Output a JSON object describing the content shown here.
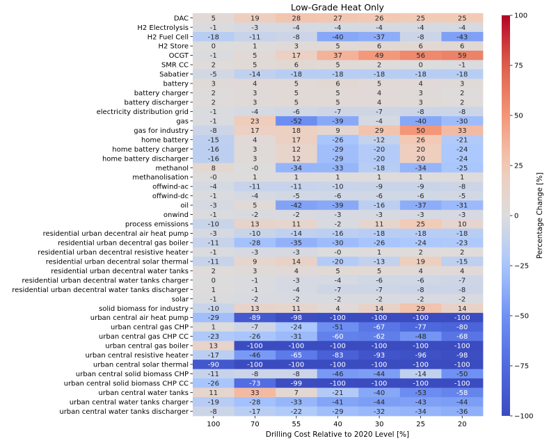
{
  "chart_data": {
    "type": "heatmap",
    "title": "Low-Grade Heat Only",
    "xlabel": "Drilling Cost Relative to 2020 Level [%]",
    "ylabel": "",
    "colorbar_label": "Percentage Change [%]",
    "colormap": "coolwarm",
    "vmin": -100,
    "vmax": 100,
    "colorbar_ticks": [
      100,
      75,
      50,
      25,
      0,
      -25,
      -50,
      -75,
      -100
    ],
    "colorbar_tick_labels": [
      "100",
      "75",
      "50",
      "25",
      "0",
      "−25",
      "−50",
      "−75",
      "−100"
    ],
    "columns": [
      "100",
      "70",
      "55",
      "40",
      "30",
      "25",
      "20"
    ],
    "rows": [
      {
        "label": "DAC",
        "values": [
          5,
          19,
          28,
          27,
          26,
          25,
          25
        ]
      },
      {
        "label": "H2 Electrolysis",
        "values": [
          -1,
          -3,
          -4,
          -4,
          -4,
          -4,
          -4
        ]
      },
      {
        "label": "H2 Fuel Cell",
        "values": [
          -18,
          -11,
          -8,
          -40,
          -37,
          -8,
          -43
        ]
      },
      {
        "label": "H2 Store",
        "values": [
          0,
          1,
          3,
          5,
          6,
          6,
          6
        ]
      },
      {
        "label": "OCGT",
        "values": [
          -1,
          5,
          17,
          37,
          49,
          56,
          59
        ]
      },
      {
        "label": "SMR CC",
        "values": [
          2,
          5,
          6,
          5,
          2,
          0,
          -1
        ]
      },
      {
        "label": "Sabatier",
        "values": [
          -5,
          -14,
          -18,
          -18,
          -18,
          -18,
          -18
        ]
      },
      {
        "label": "battery",
        "values": [
          3,
          4,
          5,
          6,
          5,
          4,
          3
        ]
      },
      {
        "label": "battery charger",
        "values": [
          2,
          3,
          5,
          5,
          4,
          3,
          2
        ]
      },
      {
        "label": "battery discharger",
        "values": [
          2,
          3,
          5,
          5,
          4,
          3,
          2
        ]
      },
      {
        "label": "electricity distribution grid",
        "values": [
          -1,
          -4,
          -6,
          -7,
          -7,
          -8,
          -8
        ]
      },
      {
        "label": "gas",
        "values": [
          -1,
          23,
          -52,
          -39,
          -4,
          -40,
          -30
        ]
      },
      {
        "label": "gas for industry",
        "values": [
          -8,
          17,
          18,
          9,
          29,
          50,
          33
        ]
      },
      {
        "label": "home battery",
        "values": [
          -15,
          4,
          17,
          -26,
          -12,
          26,
          -21
        ]
      },
      {
        "label": "home battery charger",
        "values": [
          -16,
          3,
          12,
          -29,
          -20,
          20,
          -24
        ]
      },
      {
        "label": "home battery discharger",
        "values": [
          -16,
          3,
          12,
          -29,
          -20,
          20,
          -24
        ]
      },
      {
        "label": "methanol",
        "values": [
          8,
          "-0",
          -34,
          -33,
          -18,
          -34,
          -25
        ]
      },
      {
        "label": "methanolisation",
        "values": [
          "-0",
          1,
          1,
          1,
          1,
          1,
          1
        ]
      },
      {
        "label": "offwind-ac",
        "values": [
          -4,
          -11,
          -11,
          -10,
          -9,
          -9,
          -8
        ]
      },
      {
        "label": "offwind-dc",
        "values": [
          -1,
          -4,
          -5,
          -6,
          -6,
          -6,
          -5
        ]
      },
      {
        "label": "oil",
        "values": [
          -3,
          5,
          -42,
          -39,
          -16,
          -37,
          -31
        ]
      },
      {
        "label": "onwind",
        "values": [
          -1,
          -2,
          -2,
          -3,
          -3,
          -3,
          -3
        ]
      },
      {
        "label": "process emissions",
        "values": [
          -10,
          13,
          11,
          -2,
          11,
          25,
          10
        ]
      },
      {
        "label": "residential urban decentral air heat pump",
        "values": [
          -3,
          -10,
          -14,
          -16,
          -18,
          -18,
          -18
        ]
      },
      {
        "label": "residential urban decentral gas boiler",
        "values": [
          -11,
          -28,
          -35,
          -30,
          -26,
          -24,
          -23
        ]
      },
      {
        "label": "residential urban decentral resistive heater",
        "values": [
          -1,
          -3,
          -3,
          "-0",
          1,
          2,
          2
        ]
      },
      {
        "label": "residential urban decentral solar thermal",
        "values": [
          -11,
          9,
          14,
          -20,
          -13,
          19,
          -15
        ]
      },
      {
        "label": "residential urban decentral water tanks",
        "values": [
          2,
          3,
          4,
          5,
          5,
          4,
          4
        ]
      },
      {
        "label": "residential urban decentral water tanks charger",
        "values": [
          0,
          -1,
          -3,
          -4,
          -6,
          -6,
          -7
        ]
      },
      {
        "label": "residential urban decentral water tanks discharger",
        "values": [
          1,
          -1,
          -4,
          -7,
          -7,
          -8,
          -8
        ]
      },
      {
        "label": "solar",
        "values": [
          -1,
          -2,
          -2,
          -2,
          -2,
          -2,
          -2
        ]
      },
      {
        "label": "solid biomass for industry",
        "values": [
          -10,
          13,
          11,
          4,
          14,
          29,
          14
        ]
      },
      {
        "label": "urban central air heat pump",
        "values": [
          -29,
          -89,
          -98,
          -100,
          -100,
          -100,
          -100
        ]
      },
      {
        "label": "urban central gas CHP",
        "values": [
          1,
          -7,
          -24,
          -51,
          -67,
          -77,
          -80
        ]
      },
      {
        "label": "urban central gas CHP CC",
        "values": [
          -23,
          -26,
          -31,
          -60,
          -62,
          -48,
          -68
        ]
      },
      {
        "label": "urban central gas boiler",
        "values": [
          13,
          -100,
          -100,
          -100,
          -100,
          -100,
          -100
        ]
      },
      {
        "label": "urban central resistive heater",
        "values": [
          -17,
          -46,
          -65,
          -83,
          -93,
          -96,
          -98
        ]
      },
      {
        "label": "urban central solar thermal",
        "values": [
          -90,
          -100,
          -100,
          -100,
          -100,
          -100,
          -100
        ]
      },
      {
        "label": "urban central solid biomass CHP",
        "values": [
          -11,
          -8,
          -8,
          -46,
          -44,
          -14,
          -50
        ]
      },
      {
        "label": "urban central solid biomass CHP CC",
        "values": [
          -26,
          -73,
          -99,
          -100,
          -100,
          -100,
          -100
        ]
      },
      {
        "label": "urban central water tanks",
        "values": [
          11,
          33,
          7,
          -21,
          -40,
          -53,
          -58
        ]
      },
      {
        "label": "urban central water tanks charger",
        "values": [
          -19,
          -28,
          -33,
          -41,
          -44,
          -43,
          -44
        ]
      },
      {
        "label": "urban central water tanks discharger",
        "values": [
          -8,
          -17,
          -22,
          -29,
          -32,
          -34,
          -36
        ]
      }
    ]
  }
}
